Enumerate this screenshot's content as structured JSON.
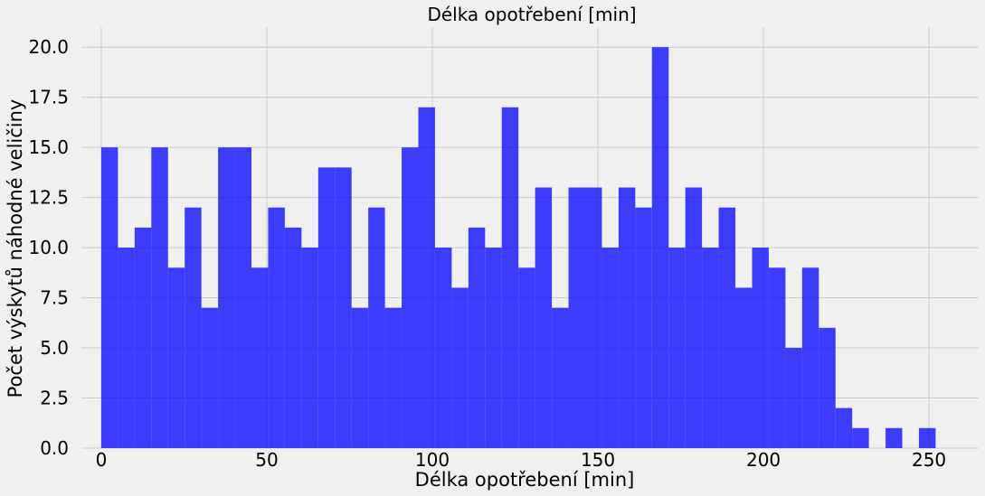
{
  "chart_data": {
    "type": "bar",
    "title": "Délka opotřebení [min]",
    "xlabel": "Délka opotřebení [min]",
    "ylabel": "Počet výskytů náhodné veličiny",
    "xlim": [
      -6.0,
      265.0
    ],
    "ylim": [
      0,
      21
    ],
    "bin_start": 0,
    "bin_width": 5.04,
    "values": [
      15,
      10,
      11,
      15,
      9,
      12,
      7,
      15,
      15,
      9,
      12,
      11,
      10,
      14,
      14,
      7,
      12,
      7,
      15,
      17,
      10,
      8,
      11,
      10,
      17,
      9,
      13,
      7,
      13,
      13,
      10,
      13,
      12,
      20,
      10,
      13,
      10,
      12,
      8,
      10,
      9,
      5,
      9,
      6,
      2,
      1,
      0,
      1,
      0,
      1
    ],
    "xticks": [
      0,
      50,
      100,
      150,
      200,
      250
    ],
    "xtick_labels": [
      "0",
      "50",
      "100",
      "150",
      "200",
      "250"
    ],
    "yticks": [
      0,
      2.5,
      5,
      7.5,
      10,
      12.5,
      15,
      17.5,
      20
    ],
    "ytick_labels": [
      "0.0",
      "2.5",
      "5.0",
      "7.5",
      "10.0",
      "12.5",
      "15.0",
      "17.5",
      "20.0"
    ],
    "grid": true,
    "colors": {
      "bar": "#0000ff",
      "background": "#f0f0f0",
      "grid": "#cbcbcb"
    }
  }
}
